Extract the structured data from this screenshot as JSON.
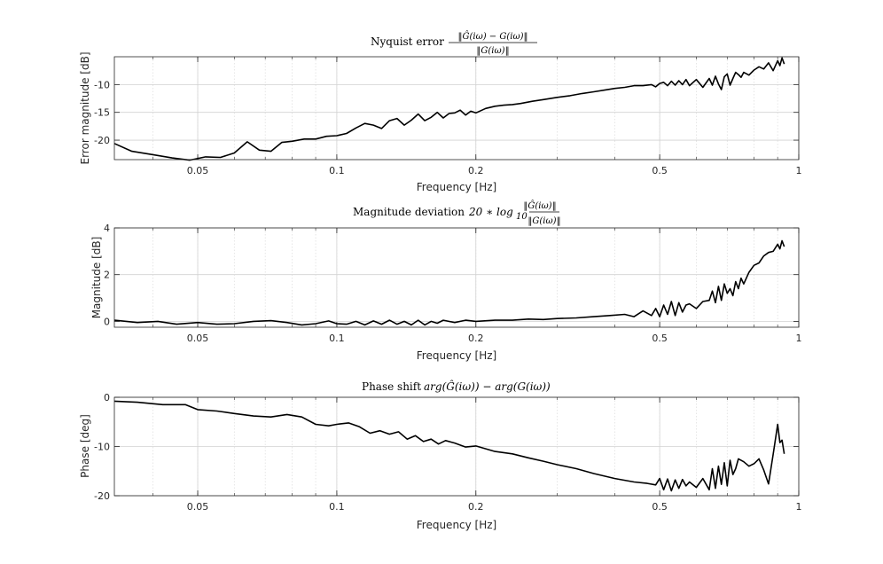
{
  "chart_data": [
    {
      "type": "line",
      "title_prefix": "Nyquist error",
      "title_math_numerator": "‖Ĝ(iω) − G(iω)‖",
      "title_math_denominator": "‖G(iω)‖",
      "xlabel": "Frequency [Hz]",
      "ylabel": "Error magnitude [dB]",
      "x_scale": "log",
      "xlim": [
        0.033,
        1
      ],
      "ylim": [
        -23.5,
        -5
      ],
      "xticks": [
        0.05,
        0.1,
        0.2,
        0.5,
        1
      ],
      "xtick_labels": [
        "0.05",
        "0.1",
        "0.2",
        "0.5",
        "1"
      ],
      "yticks": [
        -20,
        -15,
        -10
      ],
      "ytick_labels": [
        "-20",
        "-15",
        "-10"
      ],
      "grid": true,
      "line_color": "#000000",
      "x": [
        0.033,
        0.036,
        0.04,
        0.044,
        0.048,
        0.052,
        0.056,
        0.06,
        0.064,
        0.068,
        0.072,
        0.076,
        0.08,
        0.085,
        0.09,
        0.095,
        0.1,
        0.105,
        0.11,
        0.115,
        0.12,
        0.125,
        0.13,
        0.135,
        0.14,
        0.145,
        0.15,
        0.155,
        0.16,
        0.165,
        0.17,
        0.175,
        0.18,
        0.185,
        0.19,
        0.195,
        0.2,
        0.21,
        0.22,
        0.23,
        0.24,
        0.25,
        0.265,
        0.28,
        0.3,
        0.32,
        0.34,
        0.36,
        0.38,
        0.4,
        0.42,
        0.44,
        0.46,
        0.48,
        0.49,
        0.5,
        0.51,
        0.52,
        0.53,
        0.54,
        0.55,
        0.56,
        0.57,
        0.58,
        0.6,
        0.62,
        0.64,
        0.65,
        0.66,
        0.67,
        0.68,
        0.69,
        0.7,
        0.71,
        0.72,
        0.73,
        0.74,
        0.75,
        0.76,
        0.78,
        0.8,
        0.82,
        0.84,
        0.86,
        0.88,
        0.9,
        0.91,
        0.92,
        0.93
      ],
      "y": [
        -20.6,
        -22.0,
        -22.6,
        -23.2,
        -23.6,
        -23.0,
        -23.1,
        -22.3,
        -20.3,
        -21.8,
        -22.0,
        -20.4,
        -20.2,
        -19.8,
        -19.8,
        -19.3,
        -19.2,
        -18.8,
        -17.8,
        -17.0,
        -17.3,
        -17.9,
        -16.5,
        -16.1,
        -17.3,
        -16.4,
        -15.3,
        -16.5,
        -15.9,
        -15.0,
        -16.0,
        -15.2,
        -15.1,
        -14.6,
        -15.5,
        -14.8,
        -15.1,
        -14.3,
        -13.9,
        -13.7,
        -13.6,
        -13.4,
        -13.0,
        -12.7,
        -12.3,
        -12.0,
        -11.6,
        -11.3,
        -11.0,
        -10.7,
        -10.5,
        -10.2,
        -10.2,
        -10.0,
        -10.4,
        -9.8,
        -9.6,
        -10.2,
        -9.4,
        -10.1,
        -9.3,
        -10.0,
        -9.1,
        -10.2,
        -9.1,
        -10.5,
        -8.9,
        -10.1,
        -8.5,
        -9.9,
        -10.9,
        -8.6,
        -8.1,
        -10.1,
        -8.9,
        -7.8,
        -8.2,
        -8.7,
        -7.8,
        -8.3,
        -7.4,
        -6.8,
        -7.2,
        -6.1,
        -7.5,
        -5.7,
        -6.6,
        -5.2,
        -6.3
      ]
    },
    {
      "type": "line",
      "title_prefix": "Magnitude deviation",
      "title_math_function": "20 ∗ log",
      "title_math_subscript": "10",
      "title_math_numerator": "‖Ĝ(iω)‖",
      "title_math_denominator": "‖G(iω)‖",
      "xlabel": "Frequency [Hz]",
      "ylabel": "Magnitude [dB]",
      "x_scale": "log",
      "xlim": [
        0.033,
        1
      ],
      "ylim": [
        -0.25,
        4
      ],
      "xticks": [
        0.05,
        0.1,
        0.2,
        0.5,
        1
      ],
      "xtick_labels": [
        "0.05",
        "0.1",
        "0.2",
        "0.5",
        "1"
      ],
      "yticks": [
        0,
        2,
        4
      ],
      "ytick_labels": [
        "0",
        "2",
        "4"
      ],
      "grid": true,
      "line_color": "#000000",
      "x": [
        0.033,
        0.037,
        0.041,
        0.045,
        0.05,
        0.055,
        0.06,
        0.066,
        0.072,
        0.078,
        0.084,
        0.09,
        0.096,
        0.1,
        0.105,
        0.11,
        0.115,
        0.12,
        0.125,
        0.13,
        0.135,
        0.14,
        0.145,
        0.15,
        0.155,
        0.16,
        0.165,
        0.17,
        0.18,
        0.19,
        0.2,
        0.22,
        0.24,
        0.26,
        0.28,
        0.3,
        0.33,
        0.36,
        0.39,
        0.42,
        0.44,
        0.46,
        0.48,
        0.49,
        0.5,
        0.51,
        0.52,
        0.53,
        0.54,
        0.55,
        0.56,
        0.57,
        0.58,
        0.6,
        0.62,
        0.64,
        0.65,
        0.66,
        0.67,
        0.68,
        0.69,
        0.7,
        0.71,
        0.72,
        0.73,
        0.74,
        0.75,
        0.76,
        0.78,
        0.8,
        0.82,
        0.84,
        0.86,
        0.88,
        0.9,
        0.91,
        0.92,
        0.93
      ],
      "y": [
        0.05,
        -0.05,
        0.0,
        -0.12,
        -0.05,
        -0.12,
        -0.1,
        0.0,
        0.03,
        -0.05,
        -0.15,
        -0.1,
        0.02,
        -0.1,
        -0.12,
        0.0,
        -0.15,
        0.02,
        -0.12,
        0.05,
        -0.12,
        0.0,
        -0.15,
        0.05,
        -0.15,
        0.0,
        -0.08,
        0.05,
        -0.05,
        0.05,
        0.0,
        0.05,
        0.05,
        0.1,
        0.08,
        0.12,
        0.15,
        0.2,
        0.25,
        0.3,
        0.2,
        0.45,
        0.25,
        0.55,
        0.2,
        0.7,
        0.3,
        0.85,
        0.25,
        0.8,
        0.4,
        0.7,
        0.75,
        0.55,
        0.85,
        0.9,
        1.3,
        0.8,
        1.5,
        0.9,
        1.6,
        1.2,
        1.4,
        1.1,
        1.7,
        1.4,
        1.85,
        1.6,
        2.1,
        2.4,
        2.5,
        2.8,
        2.95,
        3.0,
        3.3,
        3.1,
        3.45,
        3.2
      ]
    },
    {
      "type": "line",
      "title_prefix": "Phase shift",
      "title_math": "arg(Ĝ(iω)) − arg(G(iω))",
      "xlabel": "Frequency [Hz]",
      "ylabel": "Phase [deg]",
      "x_scale": "log",
      "xlim": [
        0.033,
        1
      ],
      "ylim": [
        -20,
        0
      ],
      "xticks": [
        0.05,
        0.1,
        0.2,
        0.5,
        1
      ],
      "xtick_labels": [
        "0.05",
        "0.1",
        "0.2",
        "0.5",
        "1"
      ],
      "yticks": [
        -20,
        -10,
        0
      ],
      "ytick_labels": [
        "-20",
        "-10",
        "0"
      ],
      "grid": true,
      "line_color": "#000000",
      "x": [
        0.033,
        0.037,
        0.042,
        0.047,
        0.05,
        0.055,
        0.06,
        0.066,
        0.072,
        0.078,
        0.084,
        0.09,
        0.096,
        0.1,
        0.106,
        0.112,
        0.118,
        0.124,
        0.13,
        0.136,
        0.142,
        0.148,
        0.154,
        0.16,
        0.166,
        0.172,
        0.18,
        0.19,
        0.2,
        0.22,
        0.24,
        0.26,
        0.28,
        0.3,
        0.33,
        0.36,
        0.4,
        0.44,
        0.47,
        0.49,
        0.5,
        0.51,
        0.52,
        0.53,
        0.54,
        0.55,
        0.56,
        0.57,
        0.58,
        0.6,
        0.62,
        0.64,
        0.65,
        0.66,
        0.67,
        0.68,
        0.69,
        0.7,
        0.71,
        0.72,
        0.73,
        0.74,
        0.76,
        0.78,
        0.8,
        0.82,
        0.84,
        0.86,
        0.88,
        0.9,
        0.91,
        0.92,
        0.93
      ],
      "y": [
        -0.8,
        -1.0,
        -1.5,
        -1.5,
        -2.5,
        -2.8,
        -3.3,
        -3.8,
        -4.0,
        -3.5,
        -4.0,
        -5.5,
        -5.8,
        -5.5,
        -5.2,
        -6.0,
        -7.3,
        -6.8,
        -7.5,
        -7.0,
        -8.5,
        -7.8,
        -9.0,
        -8.5,
        -9.5,
        -8.8,
        -9.3,
        -10.1,
        -9.9,
        -11.0,
        -11.5,
        -12.3,
        -13.0,
        -13.7,
        -14.5,
        -15.5,
        -16.5,
        -17.2,
        -17.5,
        -17.8,
        -16.5,
        -18.8,
        -16.6,
        -19.0,
        -16.8,
        -18.5,
        -16.7,
        -18.0,
        -17.2,
        -18.3,
        -16.5,
        -18.8,
        -14.5,
        -18.5,
        -14.0,
        -17.7,
        -13.3,
        -18.0,
        -12.8,
        -15.7,
        -14.5,
        -12.5,
        -13.1,
        -14.0,
        -13.5,
        -12.5,
        -14.8,
        -17.6,
        -11.6,
        -5.5,
        -9.2,
        -8.7,
        -11.5
      ]
    }
  ]
}
